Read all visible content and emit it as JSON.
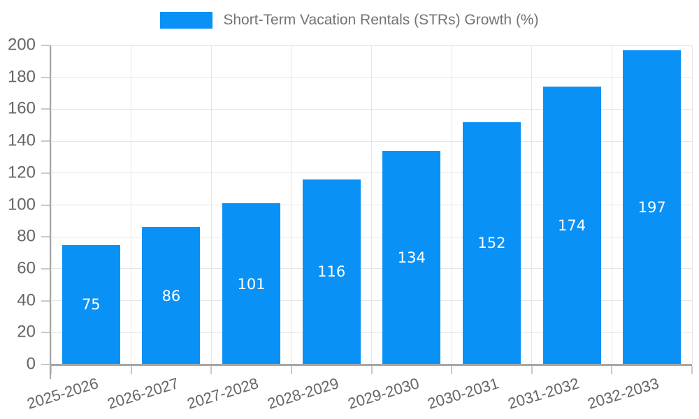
{
  "chart_data": {
    "type": "bar",
    "title": "Short-Term Vacation Rentals (STRs) Growth (%)",
    "categories": [
      "2025-2026",
      "2026-2027",
      "2027-2028",
      "2028-2029",
      "2029-2030",
      "2030-2031",
      "2031-2032",
      "2032-2033"
    ],
    "values": [
      75,
      86,
      101,
      116,
      134,
      152,
      174,
      197
    ],
    "xlabel": "",
    "ylabel": "",
    "ylim": [
      0,
      200
    ],
    "yticks": [
      0,
      20,
      40,
      60,
      80,
      100,
      120,
      140,
      160,
      180,
      200
    ],
    "grid": true,
    "legend_position": "top",
    "value_labels": "inside-center",
    "colors": {
      "bar": "#0a91f5",
      "bar_value_text": "#ffffff",
      "axis_tick_text": "#666666",
      "legend_text": "#737373",
      "gridline": "#e5e5e5",
      "axis_line": "#a6a6a6",
      "tick_mark": "#c9c9c9",
      "background": "#ffffff"
    }
  }
}
